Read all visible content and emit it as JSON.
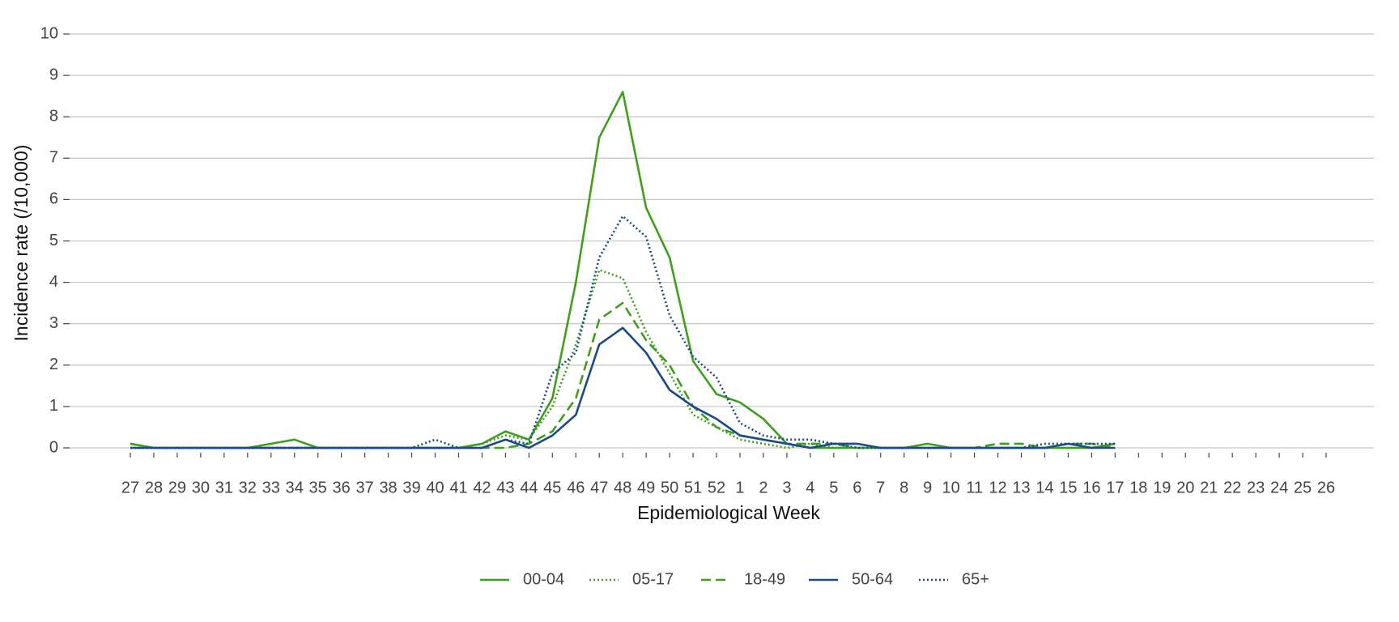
{
  "chart_data": {
    "type": "line",
    "x_label": "Epidemiological Week",
    "y_label": "Incidence rate (/10,000)",
    "categories": [
      "27",
      "28",
      "29",
      "30",
      "31",
      "32",
      "33",
      "34",
      "35",
      "36",
      "37",
      "38",
      "39",
      "40",
      "41",
      "42",
      "43",
      "44",
      "45",
      "46",
      "47",
      "48",
      "49",
      "50",
      "51",
      "52",
      "1",
      "2",
      "3",
      "4",
      "5",
      "6",
      "7",
      "8",
      "9",
      "10",
      "11",
      "12",
      "13",
      "14",
      "15",
      "16",
      "17",
      "18",
      "19",
      "20",
      "21",
      "22",
      "23",
      "24",
      "25",
      "26"
    ],
    "ylim": [
      0,
      10
    ],
    "yticks": [
      0,
      1,
      2,
      3,
      4,
      5,
      6,
      7,
      8,
      9,
      10
    ],
    "grid": true,
    "legend": "bottom",
    "series": [
      {
        "name": "00-04",
        "color": "#3f9e1c",
        "dash": "solid",
        "values": [
          0.1,
          0,
          0,
          0,
          0,
          0,
          0.1,
          0.2,
          0,
          0,
          0,
          0,
          0,
          0,
          0,
          0.1,
          0.4,
          0.2,
          1.2,
          4.0,
          7.5,
          8.6,
          5.8,
          4.6,
          2.1,
          1.3,
          1.1,
          0.7,
          0.1,
          0,
          0,
          0,
          0,
          0,
          0.1,
          0,
          0,
          0,
          0,
          0,
          0,
          0,
          0.1,
          null,
          null,
          null,
          null,
          null,
          null,
          null,
          null,
          null
        ]
      },
      {
        "name": "05-17",
        "color": "#3f9e1c",
        "dash": "dotted",
        "values": [
          0,
          0,
          0,
          0,
          0,
          0,
          0,
          0,
          0,
          0,
          0,
          0,
          0,
          0,
          0,
          0.1,
          0.3,
          0.2,
          1.0,
          2.5,
          4.3,
          4.1,
          2.8,
          1.8,
          0.8,
          0.5,
          0.2,
          0.1,
          0,
          0.1,
          0,
          0,
          0,
          0,
          0,
          0,
          0,
          0,
          0,
          0,
          0,
          0,
          0.1,
          null,
          null,
          null,
          null,
          null,
          null,
          null,
          null,
          null
        ]
      },
      {
        "name": "18-49",
        "color": "#3f9e1c",
        "dash": "dashed",
        "values": [
          0.1,
          0,
          0,
          0,
          0,
          0,
          0,
          0,
          0,
          0,
          0,
          0,
          0,
          0,
          0,
          0,
          0,
          0.1,
          0.4,
          1.2,
          3.1,
          3.5,
          2.6,
          2.0,
          1.0,
          0.5,
          0.3,
          0.2,
          0.1,
          0.1,
          0.1,
          0,
          0,
          0,
          0,
          0,
          0,
          0.1,
          0.1,
          0,
          0.1,
          0.1,
          0,
          null,
          null,
          null,
          null,
          null,
          null,
          null,
          null,
          null
        ]
      },
      {
        "name": "50-64",
        "color": "#1a4a8c",
        "dash": "solid",
        "values": [
          0,
          0,
          0,
          0,
          0,
          0,
          0,
          0,
          0,
          0,
          0,
          0,
          0,
          0,
          0,
          0,
          0.2,
          0,
          0.3,
          0.8,
          2.5,
          2.9,
          2.3,
          1.4,
          1.0,
          0.7,
          0.3,
          0.2,
          0.1,
          0,
          0.1,
          0.1,
          0,
          0,
          0,
          0,
          0,
          0,
          0,
          0,
          0.1,
          0,
          0,
          null,
          null,
          null,
          null,
          null,
          null,
          null,
          null,
          null
        ]
      },
      {
        "name": "65+",
        "color": "#1a4a8c",
        "dash": "dotted",
        "values": [
          0,
          0,
          0,
          0,
          0,
          0,
          0,
          0,
          0,
          0,
          0,
          0,
          0,
          0.2,
          0,
          0,
          0.2,
          0.1,
          1.8,
          2.3,
          4.6,
          5.6,
          5.1,
          3.2,
          2.2,
          1.7,
          0.6,
          0.3,
          0.2,
          0.2,
          0.1,
          0,
          0,
          0,
          0,
          0,
          0,
          0,
          0,
          0.1,
          0.1,
          0.1,
          0.1,
          null,
          null,
          null,
          null,
          null,
          null,
          null,
          null,
          null
        ]
      }
    ]
  }
}
